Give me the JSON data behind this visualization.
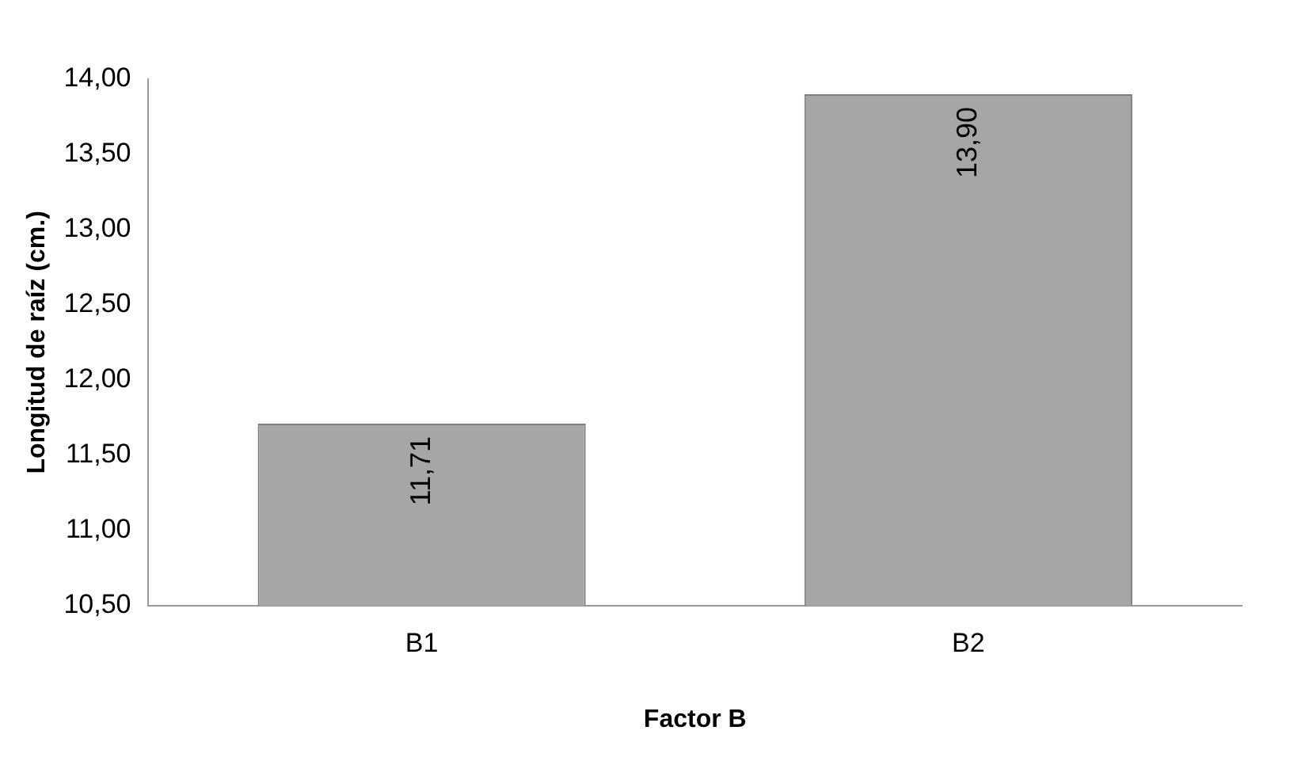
{
  "chart_data": {
    "type": "bar",
    "xlabel": "Factor B",
    "ylabel": "Longitud de raíz (cm.)",
    "categories": [
      "B1",
      "B2"
    ],
    "values": [
      11.71,
      13.9
    ],
    "color": "#a6a6a6",
    "value_labels": [
      "11,71",
      "13,90"
    ],
    "ylim": [
      10.5,
      14
    ],
    "yticks": [
      {
        "value": 10.5,
        "label": "10,50"
      },
      {
        "value": 11,
        "label": "11,00"
      },
      {
        "value": 11.5,
        "label": "11,50"
      },
      {
        "value": 12,
        "label": "12,00"
      },
      {
        "value": 12.5,
        "label": "12,50"
      },
      {
        "value": 13,
        "label": "13,00"
      },
      {
        "value": 13.5,
        "label": "13,50"
      },
      {
        "value": 14,
        "label": "14,00"
      }
    ],
    "grid": false,
    "legend": false
  }
}
